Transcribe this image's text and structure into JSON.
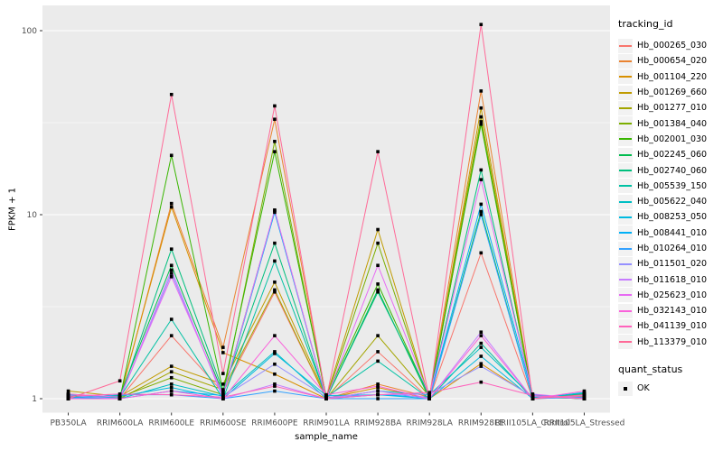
{
  "chart_data": {
    "type": "line",
    "xlabel": "sample_name",
    "ylabel": "FPKM + 1",
    "y_scale": "log10",
    "y_ticks": [
      1,
      10,
      100
    ],
    "ylim": [
      0.83,
      135
    ],
    "grid": "ggplot-gray-panel-white-gridlines",
    "legend_position": "right",
    "legend_title": "tracking_id",
    "point_marker": "black-square",
    "colors": {
      "panel_bg": "#EBEBEB",
      "gridline": "#FFFFFF",
      "tick_text": "#4D4D4D",
      "axis_title_text": "#000000",
      "point": "#000000",
      "legend_key_bg": "#F2F2F2"
    },
    "categories": [
      "PB350LA",
      "RRIM600LA",
      "RRIM600LE",
      "RRIM600SE",
      "RRIM600PE",
      "RRIM901LA",
      "RRIM928BA",
      "RRIM928LA",
      "RRIM928LE",
      "RRII105LA_Control",
      "RRII105LA_Stressed"
    ],
    "series": [
      {
        "name": "Hb_000265_030",
        "color": "#F8766D",
        "values": [
          1.02,
          1.0,
          2.2,
          1.08,
          3.8,
          1.0,
          1.8,
          1.0,
          6.2,
          1.0,
          1.02
        ]
      },
      {
        "name": "Hb_000654_020",
        "color": "#EA8331",
        "values": [
          1.05,
          1.0,
          11.5,
          1.9,
          33.0,
          1.0,
          1.2,
          1.02,
          47.0,
          1.0,
          1.03
        ]
      },
      {
        "name": "Hb_001104_220",
        "color": "#D89000",
        "values": [
          1.06,
          1.02,
          11.0,
          1.78,
          1.36,
          1.0,
          1.15,
          1.0,
          1.55,
          1.02,
          1.0
        ]
      },
      {
        "name": "Hb_001269_660",
        "color": "#C09B00",
        "values": [
          1.1,
          1.03,
          1.5,
          1.2,
          4.3,
          1.02,
          8.3,
          1.0,
          38.0,
          1.0,
          1.04
        ]
      },
      {
        "name": "Hb_001277_010",
        "color": "#A3A500",
        "values": [
          1.04,
          1.0,
          1.4,
          1.12,
          3.9,
          1.0,
          2.2,
          1.03,
          34.0,
          1.03,
          1.0
        ]
      },
      {
        "name": "Hb_001384_040",
        "color": "#7CAE00",
        "values": [
          1.0,
          1.02,
          1.3,
          1.05,
          25.0,
          1.0,
          7.0,
          1.0,
          32.0,
          1.0,
          1.05
        ]
      },
      {
        "name": "Hb_002001_030",
        "color": "#39B600",
        "values": [
          1.02,
          1.0,
          21.0,
          1.1,
          22.0,
          1.03,
          4.2,
          1.02,
          31.0,
          1.02,
          1.0
        ]
      },
      {
        "name": "Hb_002245_060",
        "color": "#00BB4E",
        "values": [
          1.0,
          1.04,
          5.3,
          1.06,
          10.5,
          1.0,
          3.9,
          1.0,
          10.4,
          1.0,
          1.06
        ]
      },
      {
        "name": "Hb_002740_060",
        "color": "#00BF7D",
        "values": [
          1.03,
          1.0,
          6.5,
          1.1,
          7.0,
          1.0,
          3.8,
          1.04,
          17.5,
          1.04,
          1.0
        ]
      },
      {
        "name": "Hb_005539_150",
        "color": "#00C1A3",
        "values": [
          1.0,
          1.02,
          2.7,
          1.0,
          5.6,
          1.02,
          1.6,
          1.0,
          2.0,
          1.0,
          1.07
        ]
      },
      {
        "name": "Hb_005622_040",
        "color": "#00BFC4",
        "values": [
          1.05,
          1.0,
          1.2,
          1.03,
          1.8,
          1.0,
          1.1,
          1.05,
          1.9,
          1.02,
          1.0
        ]
      },
      {
        "name": "Hb_008253_050",
        "color": "#00BAE0",
        "values": [
          1.0,
          1.03,
          1.15,
          1.0,
          1.76,
          1.04,
          1.05,
          1.0,
          1.7,
          1.0,
          1.08
        ]
      },
      {
        "name": "Hb_008441_010",
        "color": "#00B0F6",
        "values": [
          1.02,
          1.0,
          1.1,
          1.04,
          10.3,
          1.0,
          1.05,
          1.02,
          11.4,
          1.05,
          1.0
        ]
      },
      {
        "name": "Hb_010264_010",
        "color": "#35A2FF",
        "values": [
          1.0,
          1.05,
          1.05,
          1.0,
          1.1,
          1.0,
          1.0,
          1.0,
          10.0,
          1.0,
          1.02
        ]
      },
      {
        "name": "Hb_011501_020",
        "color": "#9590FF",
        "values": [
          1.04,
          1.0,
          4.8,
          1.02,
          1.54,
          1.02,
          1.05,
          1.06,
          1.5,
          1.03,
          1.0
        ]
      },
      {
        "name": "Hb_011618_010",
        "color": "#C77CFF",
        "values": [
          1.0,
          1.0,
          5.0,
          1.0,
          1.2,
          1.0,
          1.1,
          1.0,
          2.3,
          1.0,
          1.04
        ]
      },
      {
        "name": "Hb_025623_010",
        "color": "#E76BF3",
        "values": [
          1.06,
          1.02,
          4.6,
          1.05,
          10.6,
          1.0,
          5.3,
          1.03,
          15.5,
          1.06,
          1.0
        ]
      },
      {
        "name": "Hb_032143_010",
        "color": "#FA62DB",
        "values": [
          1.0,
          1.0,
          1.1,
          1.0,
          2.2,
          1.05,
          1.17,
          1.0,
          2.2,
          1.0,
          1.1
        ]
      },
      {
        "name": "Hb_041139_010",
        "color": "#FF62BC",
        "values": [
          1.03,
          1.06,
          1.05,
          1.02,
          1.17,
          1.0,
          1.05,
          1.08,
          1.23,
          1.04,
          1.0
        ]
      },
      {
        "name": "Hb_113379_010",
        "color": "#FF6A98",
        "values": [
          1.0,
          1.25,
          45.0,
          1.37,
          39.0,
          1.0,
          22.0,
          1.0,
          108.0,
          1.0,
          1.05
        ]
      }
    ],
    "quant_legend": {
      "title": "quant_status",
      "items": [
        {
          "label": "OK",
          "marker": "black-square"
        }
      ]
    }
  }
}
